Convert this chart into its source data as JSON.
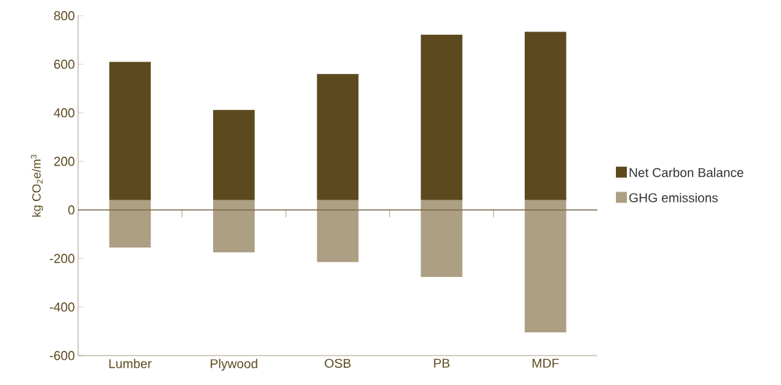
{
  "chart_data": {
    "type": "bar",
    "ylabel": "kg CO$_{2}$e/m$^{3}$",
    "categories": [
      "Lumber",
      "Plywood",
      "OSB",
      "PB",
      "MDF"
    ],
    "series": [
      {
        "name": "Net Carbon Balance",
        "color": "#5c4a1e",
        "base": [
          40,
          40,
          40,
          40,
          40
        ],
        "values": [
          570,
          372,
          520,
          682,
          694
        ]
      },
      {
        "name": "GHG emissions",
        "color": "#ad9f83",
        "base": [
          40,
          40,
          40,
          40,
          40
        ],
        "values": [
          -195,
          -215,
          -255,
          -316,
          -544
        ]
      }
    ],
    "ylim": [
      -600,
      800
    ],
    "yticks": [
      -600,
      -400,
      -200,
      0,
      200,
      400,
      600,
      800
    ],
    "ref_lines": [
      {
        "axis": "y",
        "value": 0,
        "color": "#7a6a48"
      }
    ],
    "legend": "right",
    "grid": false
  }
}
